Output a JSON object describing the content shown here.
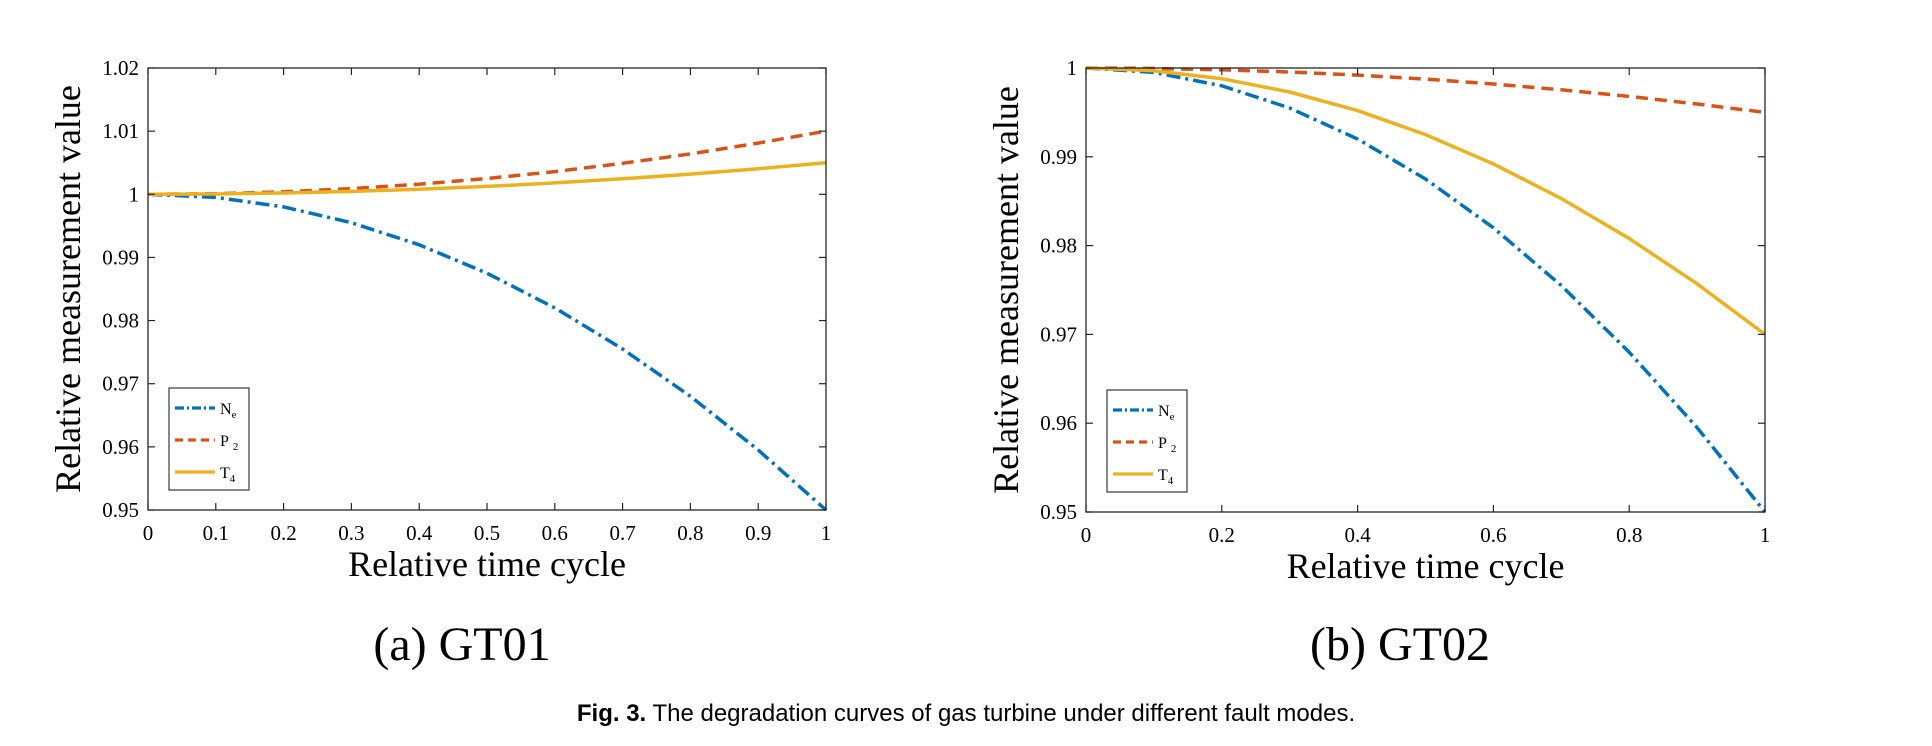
{
  "colors": {
    "Ne": "#0072BD",
    "P2": "#D95319",
    "T4": "#EDB120"
  },
  "figure": {
    "label": "Fig. 3.",
    "caption": "The degradation curves of gas turbine under different fault modes."
  },
  "chart_data": [
    {
      "type": "line",
      "subfigure_label": "(a)  GT01",
      "xlabel": "Relative time cycle",
      "ylabel": "Relative measurement value",
      "xlim": [
        0,
        1
      ],
      "ylim": [
        0.95,
        1.02
      ],
      "xticks": [
        0,
        0.1,
        0.2,
        0.3,
        0.4,
        0.5,
        0.6,
        0.7,
        0.8,
        0.9,
        1
      ],
      "xtick_labels": [
        "0",
        "0.1",
        "0.2",
        "0.3",
        "0.4",
        "0.5",
        "0.6",
        "0.7",
        "0.8",
        "0.9",
        "1"
      ],
      "yticks": [
        0.95,
        0.96,
        0.97,
        0.98,
        0.99,
        1,
        1.01,
        1.02
      ],
      "ytick_labels": [
        "0.95",
        "0.96",
        "0.97",
        "0.98",
        "0.99",
        "1",
        "1.01",
        "1.02"
      ],
      "grid": false,
      "legend_position": "bottom-left",
      "series": [
        {
          "name": "N",
          "sub": "e",
          "key": "Ne",
          "style": "dashdot",
          "x": [
            0,
            0.1,
            0.2,
            0.3,
            0.4,
            0.5,
            0.6,
            0.7,
            0.8,
            0.9,
            1
          ],
          "y": [
            1.0,
            0.9995,
            0.998,
            0.9955,
            0.992,
            0.9875,
            0.982,
            0.9755,
            0.968,
            0.9595,
            0.95
          ]
        },
        {
          "name": "P",
          "sub": "2",
          "key": "P2",
          "style": "dashed",
          "x": [
            0,
            0.1,
            0.2,
            0.3,
            0.4,
            0.5,
            0.6,
            0.7,
            0.8,
            0.9,
            1
          ],
          "y": [
            1.0,
            1.0001,
            1.0004,
            1.0009,
            1.0016,
            1.0025,
            1.0036,
            1.0049,
            1.0064,
            1.0081,
            1.01
          ]
        },
        {
          "name": "T",
          "sub": "4",
          "key": "T4",
          "style": "solid",
          "x": [
            0,
            0.1,
            0.2,
            0.3,
            0.4,
            0.5,
            0.6,
            0.7,
            0.8,
            0.9,
            1
          ],
          "y": [
            1.0,
            1.00005,
            1.0002,
            1.00045,
            1.0008,
            1.00125,
            1.0018,
            1.00245,
            1.0032,
            1.00405,
            1.005
          ]
        }
      ]
    },
    {
      "type": "line",
      "subfigure_label": "(b)  GT02",
      "xlabel": "Relative time cycle",
      "ylabel": "Relative measurement value",
      "xlim": [
        0,
        1
      ],
      "ylim": [
        0.95,
        1.0
      ],
      "xticks": [
        0,
        0.2,
        0.4,
        0.6,
        0.8,
        1
      ],
      "xtick_labels": [
        "0",
        "0.2",
        "0.4",
        "0.6",
        "0.8",
        "1"
      ],
      "yticks": [
        0.95,
        0.96,
        0.97,
        0.98,
        0.99,
        1
      ],
      "ytick_labels": [
        "0.95",
        "0.96",
        "0.97",
        "0.98",
        "0.99",
        "1"
      ],
      "grid": false,
      "legend_position": "bottom-left",
      "series": [
        {
          "name": "N",
          "sub": "e",
          "key": "Ne",
          "style": "dashdot",
          "x": [
            0,
            0.1,
            0.2,
            0.3,
            0.4,
            0.5,
            0.6,
            0.7,
            0.8,
            0.9,
            1
          ],
          "y": [
            1.0,
            0.9995,
            0.998,
            0.9955,
            0.992,
            0.9875,
            0.982,
            0.9755,
            0.968,
            0.9595,
            0.95
          ]
        },
        {
          "name": "P",
          "sub": "2",
          "key": "P2",
          "style": "dashed",
          "x": [
            0,
            0.1,
            0.2,
            0.3,
            0.4,
            0.5,
            0.6,
            0.7,
            0.8,
            0.9,
            1
          ],
          "y": [
            1.0,
            0.99995,
            0.9998,
            0.99955,
            0.9992,
            0.99875,
            0.9982,
            0.99755,
            0.9968,
            0.99595,
            0.995
          ]
        },
        {
          "name": "T",
          "sub": "4",
          "key": "T4",
          "style": "solid",
          "x": [
            0,
            0.1,
            0.2,
            0.3,
            0.4,
            0.5,
            0.6,
            0.7,
            0.8,
            0.9,
            1
          ],
          "y": [
            1.0,
            0.9997,
            0.9988,
            0.9973,
            0.9952,
            0.9925,
            0.9892,
            0.9853,
            0.9808,
            0.9757,
            0.97
          ]
        }
      ]
    }
  ]
}
